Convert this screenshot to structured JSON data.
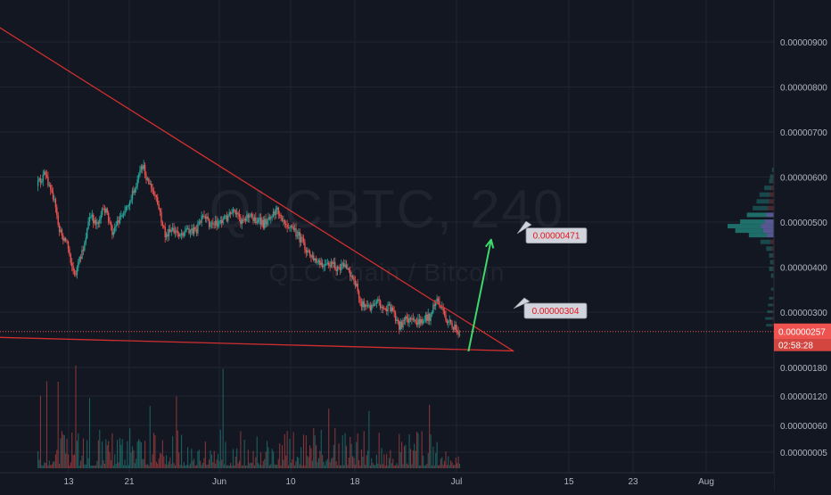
{
  "chart_data": {
    "type": "candlestick",
    "symbol": "QLCBTC",
    "interval": "240",
    "description": "QLC Chain / Bitcoin",
    "x_ticks": [
      "13",
      "21",
      "Jun",
      "10",
      "18",
      "Jul",
      "15",
      "23",
      "Aug"
    ],
    "y_ticks": [
      "0.00000900",
      "0.00000800",
      "0.00000700",
      "0.00000600",
      "0.00000500",
      "0.00000400",
      "0.00000300"
    ],
    "y_ticks_lower": [
      "0.00000180",
      "0.00000120",
      "0.00000060",
      "0.00000005"
    ],
    "y_range": [
      2.2e-06,
      9.9e-06
    ],
    "last_price": "0.00000257",
    "countdown": "02:58:28",
    "annotations": [
      {
        "label": "0.00000471",
        "value": 4.71e-06
      },
      {
        "label": "0.00000304",
        "value": 3.04e-06
      }
    ],
    "path_points": [
      {
        "time": "May 9",
        "price": 5.8e-06
      },
      {
        "time": "May 10",
        "price": 6.05e-06
      },
      {
        "time": "May 11",
        "price": 5.75e-06
      },
      {
        "time": "May 12",
        "price": 4.8e-06
      },
      {
        "time": "May 13",
        "price": 4.55e-06
      },
      {
        "time": "May 14",
        "price": 3.8e-06
      },
      {
        "time": "May 15",
        "price": 4.3e-06
      },
      {
        "time": "May 16",
        "price": 5.1e-06
      },
      {
        "time": "May 17",
        "price": 5e-06
      },
      {
        "time": "May 18",
        "price": 5.3e-06
      },
      {
        "time": "May 19",
        "price": 4.8e-06
      },
      {
        "time": "May 20",
        "price": 5.1e-06
      },
      {
        "time": "May 21",
        "price": 5.4e-06
      },
      {
        "time": "May 22",
        "price": 5.7e-06
      },
      {
        "time": "May 23",
        "price": 6.25e-06
      },
      {
        "time": "May 24",
        "price": 5.8e-06
      },
      {
        "time": "May 25",
        "price": 5.4e-06
      },
      {
        "time": "May 26",
        "price": 4.7e-06
      },
      {
        "time": "May 27",
        "price": 4.8e-06
      },
      {
        "time": "May 28",
        "price": 4.75e-06
      },
      {
        "time": "May 29",
        "price": 4.85e-06
      },
      {
        "time": "May 30",
        "price": 4.8e-06
      },
      {
        "time": "May 31",
        "price": 5.1e-06
      },
      {
        "time": "Jun 1",
        "price": 4.95e-06
      },
      {
        "time": "Jun 2",
        "price": 5e-06
      },
      {
        "time": "Jun 3",
        "price": 5.1e-06
      },
      {
        "time": "Jun 4",
        "price": 5.2e-06
      },
      {
        "time": "Jun 5",
        "price": 5.05e-06
      },
      {
        "time": "Jun 6",
        "price": 5.15e-06
      },
      {
        "time": "Jun 7",
        "price": 5.05e-06
      },
      {
        "time": "Jun 8",
        "price": 4.95e-06
      },
      {
        "time": "Jun 9",
        "price": 5.2e-06
      },
      {
        "time": "Jun 10",
        "price": 5.25e-06
      },
      {
        "time": "Jun 11",
        "price": 5e-06
      },
      {
        "time": "Jun 12",
        "price": 4.85e-06
      },
      {
        "time": "Jun 13",
        "price": 4.6e-06
      },
      {
        "time": "Jun 14",
        "price": 4.3e-06
      },
      {
        "time": "Jun 15",
        "price": 4.1e-06
      },
      {
        "time": "Jun 16",
        "price": 4e-06
      },
      {
        "time": "Jun 17",
        "price": 4.05e-06
      },
      {
        "time": "Jun 18",
        "price": 3.95e-06
      },
      {
        "time": "Jun 19",
        "price": 4.05e-06
      },
      {
        "time": "Jun 20",
        "price": 3.7e-06
      },
      {
        "time": "Jun 21",
        "price": 3.2e-06
      },
      {
        "time": "Jun 22",
        "price": 3.1e-06
      },
      {
        "time": "Jun 23",
        "price": 3.3e-06
      },
      {
        "time": "Jun 24",
        "price": 3.05e-06
      },
      {
        "time": "Jun 25",
        "price": 3.1e-06
      },
      {
        "time": "Jun 26",
        "price": 2.7e-06
      },
      {
        "time": "Jun 27",
        "price": 2.85e-06
      },
      {
        "time": "Jun 28",
        "price": 2.75e-06
      },
      {
        "time": "Jun 29",
        "price": 2.8e-06
      },
      {
        "time": "Jun 30",
        "price": 2.9e-06
      },
      {
        "time": "Jul 1",
        "price": 3.3e-06
      },
      {
        "time": "Jul 2",
        "price": 2.9e-06
      },
      {
        "time": "Jul 3",
        "price": 2.65e-06
      },
      {
        "time": "Jul 4",
        "price": 2.57e-06
      }
    ],
    "trendlines": [
      {
        "name": "resistance",
        "from": {
          "time": "Apr 27",
          "price": 1.005e-05
        },
        "to": {
          "time": "Jul 11",
          "price": 2.13e-06
        }
      },
      {
        "name": "support",
        "from": {
          "time": "Apr 27",
          "price": 2.47e-06
        },
        "to": {
          "time": "Jul 11",
          "price": 2.14e-06
        }
      }
    ],
    "projection": {
      "from": {
        "time": "Jul 5",
        "price": 2.13e-06
      },
      "to": {
        "time": "Jul 8",
        "price": 4.61e-06
      }
    },
    "volume_profile": [
      {
        "price": 6.15e-06,
        "volume": 2
      },
      {
        "price": 6e-06,
        "volume": 4
      },
      {
        "price": 5.9e-06,
        "volume": 5
      },
      {
        "price": 5.75e-06,
        "volume": 10
      },
      {
        "price": 5.6e-06,
        "volume": 15
      },
      {
        "price": 5.45e-06,
        "volume": 18
      },
      {
        "price": 5.3e-06,
        "volume": 22
      },
      {
        "price": 5.15e-06,
        "volume": 28
      },
      {
        "price": 5e-06,
        "volume": 35
      },
      {
        "price": 4.9e-06,
        "volume": 48
      },
      {
        "price": 4.8e-06,
        "volume": 40
      },
      {
        "price": 4.7e-06,
        "volume": 26
      },
      {
        "price": 4.55e-06,
        "volume": 14
      },
      {
        "price": 4.4e-06,
        "volume": 8
      },
      {
        "price": 4.25e-06,
        "volume": 5
      },
      {
        "price": 4.1e-06,
        "volume": 4
      },
      {
        "price": 3.95e-06,
        "volume": 5
      },
      {
        "price": 3.8e-06,
        "volume": 3
      },
      {
        "price": 3.5e-06,
        "volume": 3
      },
      {
        "price": 3.3e-06,
        "volume": 5
      },
      {
        "price": 3.15e-06,
        "volume": 6
      },
      {
        "price": 3e-06,
        "volume": 7
      },
      {
        "price": 2.85e-06,
        "volume": 9
      },
      {
        "price": 2.7e-06,
        "volume": 8
      }
    ]
  },
  "colors": {
    "background": "#131722",
    "up": "#26a69a",
    "down": "#ef5350",
    "trendline": "#d12f2f",
    "projection": "#3fd86b",
    "price_label": "#ef5350"
  }
}
